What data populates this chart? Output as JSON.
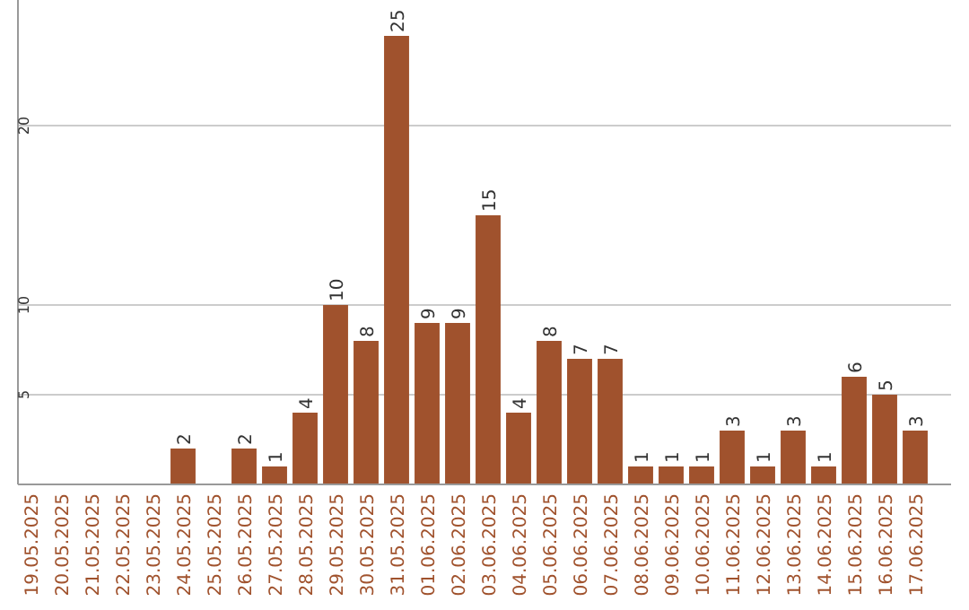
{
  "chart_data": {
    "type": "bar",
    "color": "#a0522d",
    "categories": [
      "19.05.2025",
      "20.05.2025",
      "21.05.2025",
      "22.05.2025",
      "23.05.2025",
      "24.05.2025",
      "25.05.2025",
      "26.05.2025",
      "27.05.2025",
      "28.05.2025",
      "29.05.2025",
      "30.05.2025",
      "31.05.2025",
      "01.06.2025",
      "02.06.2025",
      "03.06.2025",
      "04.06.2025",
      "05.06.2025",
      "06.06.2025",
      "07.06.2025",
      "08.06.2025",
      "09.06.2025",
      "10.06.2025",
      "11.06.2025",
      "12.06.2025",
      "13.06.2025",
      "14.06.2025",
      "15.06.2025",
      "16.06.2025",
      "17.06.2025"
    ],
    "values": [
      0,
      0,
      0,
      0,
      0,
      2,
      0,
      2,
      1,
      4,
      10,
      8,
      25,
      9,
      9,
      15,
      4,
      8,
      7,
      7,
      1,
      1,
      1,
      3,
      1,
      3,
      1,
      6,
      5,
      3
    ],
    "value_labels": [
      null,
      null,
      null,
      null,
      null,
      "2",
      null,
      "2",
      "1",
      "4",
      "10",
      "8",
      "25",
      "9",
      "9",
      "15",
      "4",
      "8",
      "7",
      "7",
      "1",
      "1",
      "1",
      "3",
      "1",
      "3",
      "1",
      "6",
      "5",
      "3"
    ],
    "ylim": [
      0,
      27
    ],
    "yticks": [
      5,
      10,
      20
    ],
    "grid": "y"
  }
}
